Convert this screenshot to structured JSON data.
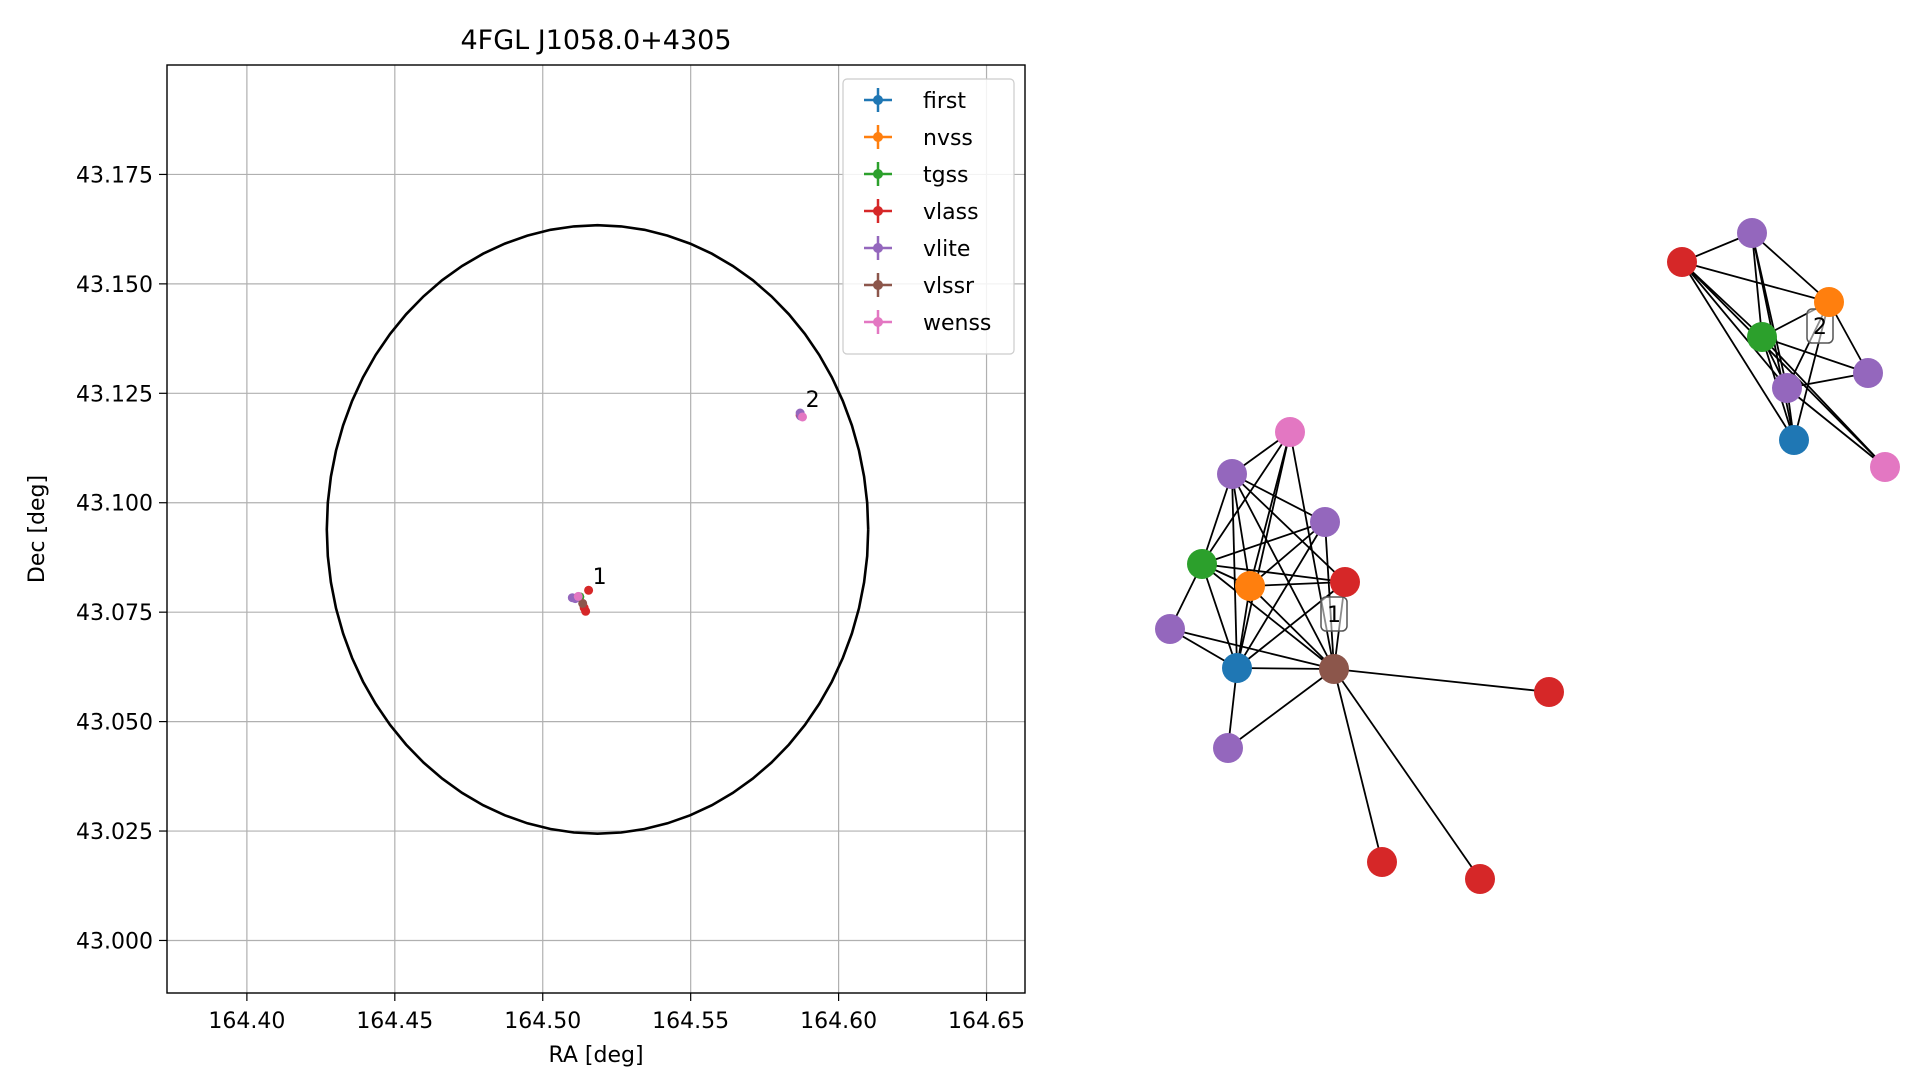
{
  "chart_data": [
    {
      "type": "scatter",
      "title": "4FGL J1058.0+4305",
      "xlabel": "RA [deg]",
      "ylabel": "Dec [deg]",
      "xlim": [
        164.373,
        164.663
      ],
      "ylim": [
        42.988,
        43.2
      ],
      "xticks": [
        "164.40",
        "164.45",
        "164.50",
        "164.55",
        "164.60",
        "164.65"
      ],
      "yticks": [
        "43.000",
        "43.025",
        "43.050",
        "43.075",
        "43.100",
        "43.125",
        "43.150",
        "43.175"
      ],
      "grid": true,
      "legend_position": "top-right",
      "ellipse": {
        "center_ra": 164.5185,
        "center_dec": 43.0939,
        "semi_axis_ra": 0.0915,
        "semi_axis_dec": 0.0695,
        "color": "#000000"
      },
      "series": [
        {
          "name": "first",
          "color": "#1f77b4",
          "points": [
            [
              164.5125,
              43.0785
            ]
          ]
        },
        {
          "name": "nvss",
          "color": "#ff7f0e",
          "points": [
            [
              164.5125,
              43.0785
            ]
          ]
        },
        {
          "name": "tgss",
          "color": "#2ca02c",
          "points": [
            [
              164.5125,
              43.0785
            ]
          ]
        },
        {
          "name": "vlass",
          "color": "#d62728",
          "points": [
            [
              164.5155,
              43.08
            ],
            [
              164.5145,
              43.0752
            ],
            [
              164.514,
              43.076
            ],
            [
              164.587,
              43.12
            ]
          ]
        },
        {
          "name": "vlite",
          "color": "#9467bd",
          "points": [
            [
              164.51,
              43.0783
            ],
            [
              164.511,
              43.0781
            ],
            [
              164.587,
              43.1205
            ],
            [
              164.5872,
              43.1198
            ]
          ]
        },
        {
          "name": "vlssr",
          "color": "#8c564b",
          "points": [
            [
              164.5135,
              43.077
            ]
          ]
        },
        {
          "name": "wenss",
          "color": "#e377c2",
          "points": [
            [
              164.512,
              43.0786
            ],
            [
              164.5878,
              43.1196
            ]
          ]
        }
      ],
      "annotations": [
        {
          "text": "1",
          "ra": 164.5155,
          "dec": 43.0805
        },
        {
          "text": "2",
          "ra": 164.5875,
          "dec": 43.121
        }
      ]
    },
    {
      "type": "network",
      "clusters": [
        {
          "label": "1"
        },
        {
          "label": "2"
        }
      ],
      "nodes": [
        {
          "id": "a1",
          "color": "#e377c2"
        },
        {
          "id": "a2",
          "color": "#9467bd"
        },
        {
          "id": "a3",
          "color": "#9467bd"
        },
        {
          "id": "a4",
          "color": "#2ca02c"
        },
        {
          "id": "a5",
          "color": "#ff7f0e"
        },
        {
          "id": "a6",
          "color": "#d62728"
        },
        {
          "id": "a7",
          "color": "#9467bd"
        },
        {
          "id": "a8",
          "color": "#1f77b4"
        },
        {
          "id": "a9",
          "color": "#8c564b"
        },
        {
          "id": "a10",
          "color": "#9467bd"
        },
        {
          "id": "a11",
          "color": "#d62728"
        },
        {
          "id": "a12",
          "color": "#d62728"
        },
        {
          "id": "a13",
          "color": "#d62728"
        },
        {
          "id": "b1",
          "color": "#9467bd"
        },
        {
          "id": "b2",
          "color": "#d62728"
        },
        {
          "id": "b3",
          "color": "#ff7f0e"
        },
        {
          "id": "b4",
          "color": "#2ca02c"
        },
        {
          "id": "b5",
          "color": "#9467bd"
        },
        {
          "id": "b6",
          "color": "#9467bd"
        },
        {
          "id": "b7",
          "color": "#1f77b4"
        },
        {
          "id": "b8",
          "color": "#e377c2"
        }
      ],
      "edges": [
        [
          "a1",
          "a2"
        ],
        [
          "a1",
          "a4"
        ],
        [
          "a1",
          "a5"
        ],
        [
          "a1",
          "a8"
        ],
        [
          "a1",
          "a9"
        ],
        [
          "a2",
          "a3"
        ],
        [
          "a2",
          "a4"
        ],
        [
          "a2",
          "a5"
        ],
        [
          "a2",
          "a6"
        ],
        [
          "a2",
          "a8"
        ],
        [
          "a2",
          "a9"
        ],
        [
          "a3",
          "a4"
        ],
        [
          "a3",
          "a5"
        ],
        [
          "a3",
          "a8"
        ],
        [
          "a3",
          "a9"
        ],
        [
          "a4",
          "a5"
        ],
        [
          "a4",
          "a6"
        ],
        [
          "a4",
          "a7"
        ],
        [
          "a4",
          "a8"
        ],
        [
          "a4",
          "a9"
        ],
        [
          "a5",
          "a6"
        ],
        [
          "a5",
          "a8"
        ],
        [
          "a5",
          "a9"
        ],
        [
          "a6",
          "a8"
        ],
        [
          "a6",
          "a9"
        ],
        [
          "a7",
          "a8"
        ],
        [
          "a7",
          "a9"
        ],
        [
          "a8",
          "a9"
        ],
        [
          "a8",
          "a10"
        ],
        [
          "a9",
          "a10"
        ],
        [
          "a9",
          "a11"
        ],
        [
          "a9",
          "a12"
        ],
        [
          "a9",
          "a13"
        ],
        [
          "b1",
          "b2"
        ],
        [
          "b1",
          "b3"
        ],
        [
          "b1",
          "b4"
        ],
        [
          "b1",
          "b6"
        ],
        [
          "b1",
          "b7"
        ],
        [
          "b2",
          "b3"
        ],
        [
          "b2",
          "b4"
        ],
        [
          "b2",
          "b6"
        ],
        [
          "b2",
          "b7"
        ],
        [
          "b2",
          "b8"
        ],
        [
          "b3",
          "b4"
        ],
        [
          "b3",
          "b5"
        ],
        [
          "b3",
          "b6"
        ],
        [
          "b3",
          "b7"
        ],
        [
          "b4",
          "b5"
        ],
        [
          "b4",
          "b6"
        ],
        [
          "b4",
          "b7"
        ],
        [
          "b4",
          "b8"
        ],
        [
          "b5",
          "b6"
        ],
        [
          "b6",
          "b7"
        ],
        [
          "b6",
          "b8"
        ]
      ]
    }
  ]
}
